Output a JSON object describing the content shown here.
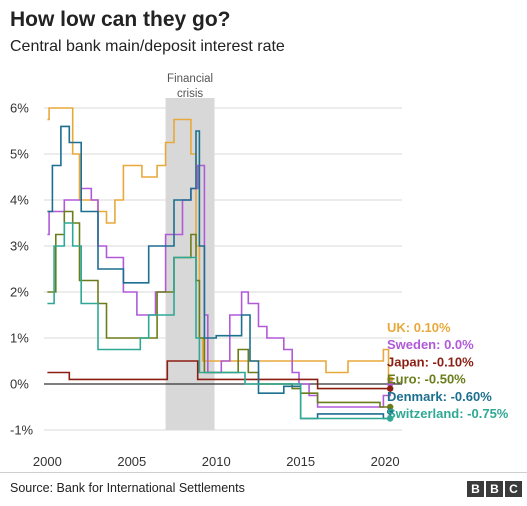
{
  "title": "How low can they go?",
  "subtitle": "Central bank main/deposit interest rate",
  "source": "Source: Bank for International Settlements",
  "logo": [
    "B",
    "B",
    "C"
  ],
  "chart_data": {
    "type": "line",
    "title": "How low can they go?",
    "subtitle": "Central bank main/deposit interest rate",
    "xlabel": "",
    "ylabel": "",
    "xlim": [
      1999.8,
      2021
    ],
    "ylim": [
      -1,
      6
    ],
    "x_ticks": [
      2000,
      2005,
      2010,
      2015,
      2020
    ],
    "x_tick_labels": [
      "2000",
      "2005",
      "2010",
      "2015",
      "2020"
    ],
    "y_ticks": [
      6,
      5,
      4,
      3,
      2,
      1,
      0,
      -1
    ],
    "y_tick_labels": [
      "6%",
      "5%",
      "4%",
      "3%",
      "2%",
      "1%",
      "0%",
      "-1%"
    ],
    "grid": "horizontal",
    "shaded_region": {
      "label_lines": [
        "Financial",
        "crisis"
      ],
      "x": [
        2007,
        2009.9
      ],
      "color": "#d8d8d8"
    },
    "series": [
      {
        "name": "UK",
        "end_label": "UK: 0.10%",
        "color": "#e8a93c",
        "x": [
          2000,
          2000.1,
          2001,
          2001.5,
          2001.9,
          2002,
          2003,
          2003.5,
          2004,
          2004.5,
          2005.6,
          2006.5,
          2007,
          2007.5,
          2008.5,
          2008.8,
          2009,
          2009.2,
          2016.5,
          2017.8,
          2019.9,
          2020.2,
          2020.3
        ],
        "y": [
          5.75,
          6.0,
          6.0,
          5.0,
          4.0,
          4.0,
          3.75,
          3.5,
          4.0,
          4.75,
          4.5,
          4.75,
          5.25,
          5.75,
          5.0,
          3.0,
          1.0,
          0.5,
          0.25,
          0.5,
          0.75,
          0.1,
          0.1
        ]
      },
      {
        "name": "Sweden",
        "end_label": "Sweden: 0.0%",
        "color": "#b05ad8",
        "x": [
          2000,
          2000.1,
          2001,
          2002,
          2002.6,
          2003,
          2003.5,
          2004.5,
          2005.3,
          2005.8,
          2006.4,
          2007,
          2008,
          2008.5,
          2008.9,
          2009.3,
          2009.5,
          2010.3,
          2010.8,
          2011.5,
          2011.9,
          2012.5,
          2013,
          2014,
          2014.5,
          2014.9,
          2015.5,
          2016,
          2018.9,
          2019.9,
          2020.3
        ],
        "y": [
          3.25,
          3.75,
          4.0,
          4.25,
          4.0,
          3.0,
          2.75,
          2.0,
          1.5,
          1.5,
          2.0,
          3.25,
          4.0,
          4.25,
          4.75,
          1.5,
          0.25,
          0.5,
          1.5,
          2.0,
          1.75,
          1.25,
          1.0,
          0.75,
          0.25,
          0.0,
          -0.25,
          -0.5,
          -0.5,
          -0.25,
          0.0
        ]
      },
      {
        "name": "Japan",
        "end_label": "Japan: -0.10%",
        "color": "#8b1e12",
        "x": [
          2000,
          2000.7,
          2001.1,
          2001.3,
          2006.5,
          2007.1,
          2008.8,
          2008.9,
          2016,
          2020.3
        ],
        "y": [
          0.25,
          0.25,
          0.25,
          0.1,
          0.1,
          0.5,
          0.5,
          0.1,
          -0.1,
          -0.1
        ]
      },
      {
        "name": "Euro",
        "end_label": "Euro: -0.50%",
        "color": "#6b7d1a",
        "x": [
          2000,
          2000.5,
          2001,
          2001.5,
          2001.9,
          2003,
          2003.5,
          2005.9,
          2006.5,
          2007.5,
          2008.5,
          2008.8,
          2009,
          2009.3,
          2011.3,
          2011.9,
          2012.5,
          2014.5,
          2015,
          2016,
          2019.7,
          2020.3
        ],
        "y": [
          2.0,
          3.25,
          3.75,
          3.5,
          2.25,
          1.75,
          1.0,
          1.0,
          2.0,
          2.75,
          3.25,
          2.25,
          1.0,
          0.25,
          0.75,
          0.25,
          0.0,
          -0.1,
          -0.2,
          -0.4,
          -0.5,
          -0.5
        ]
      },
      {
        "name": "Denmark",
        "end_label": "Denmark: -0.60%",
        "color": "#1c6f8f",
        "x": [
          2000,
          2000.3,
          2000.8,
          2001.3,
          2002,
          2003,
          2004.5,
          2005.5,
          2006,
          2007.5,
          2008.5,
          2008.8,
          2009,
          2009.3,
          2010,
          2011.5,
          2012,
          2012.5,
          2014,
          2015,
          2016,
          2019.9,
          2020.3
        ],
        "y": [
          3.75,
          4.75,
          5.6,
          5.25,
          3.75,
          2.5,
          2.2,
          2.2,
          3.0,
          4.0,
          4.25,
          5.5,
          3.0,
          1.0,
          1.05,
          1.5,
          0.5,
          -0.2,
          -0.05,
          -0.75,
          -0.65,
          -0.75,
          -0.6
        ]
      },
      {
        "name": "Switzerland",
        "end_label": "Switzerland: -0.75%",
        "color": "#2fa895",
        "x": [
          2000,
          2000.4,
          2001,
          2001.5,
          2002,
          2003,
          2004.5,
          2005.5,
          2006,
          2007.5,
          2008.5,
          2008.8,
          2009,
          2011.5,
          2011.7,
          2015,
          2020.3
        ],
        "y": [
          1.75,
          3.0,
          3.5,
          3.0,
          1.75,
          0.75,
          0.75,
          1.0,
          1.5,
          2.75,
          2.75,
          1.0,
          0.25,
          0.25,
          0.0,
          -0.75,
          -0.75
        ]
      }
    ],
    "legend": "end-labels",
    "zero_line": true
  }
}
